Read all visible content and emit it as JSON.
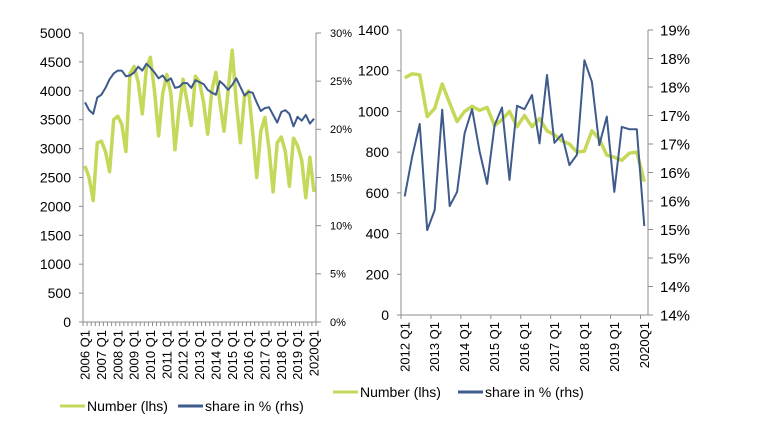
{
  "colors": {
    "number": "#c6d85a",
    "share": "#3e5b8c",
    "axis": "#8c8c8c"
  },
  "chart_data": [
    {
      "type": "line",
      "x_tick_labels": [
        "2006 Q1",
        "2007 Q1",
        "2008 Q1",
        "2009 Q1",
        "2010 Q1",
        "2011 Q1",
        "2012 Q1",
        "2013 Q1",
        "2014 Q1",
        "2015 Q1",
        "2016 Q1",
        "2017 Q1",
        "2018 Q1",
        "2019 Q1",
        "2020Q1"
      ],
      "x_range": [
        "2006 Q1",
        "2020 Q1"
      ],
      "y_left": {
        "range": [
          0,
          5000
        ],
        "ticks": [
          "0",
          "500",
          "1000",
          "1500",
          "2000",
          "2500",
          "3000",
          "3500",
          "4000",
          "4500",
          "5000"
        ]
      },
      "y_right": {
        "range": [
          0,
          30
        ],
        "unit": "%",
        "ticks": [
          "0%",
          "5%",
          "10%",
          "15%",
          "20%",
          "25%",
          "30%"
        ]
      },
      "legend_position": "bottom",
      "series": [
        {
          "name": "Number (lhs)",
          "axis": "left",
          "values": [
            2700,
            2500,
            2100,
            3100,
            3130,
            2950,
            2600,
            3500,
            3560,
            3420,
            2950,
            4300,
            4420,
            4150,
            3600,
            4400,
            4580,
            4000,
            3220,
            3950,
            4280,
            3950,
            2980,
            3700,
            4200,
            3800,
            3400,
            4250,
            4150,
            3800,
            3250,
            4000,
            4320,
            3800,
            3300,
            4000,
            4700,
            3800,
            3100,
            3900,
            4000,
            3300,
            2500,
            3300,
            3540,
            3000,
            2250,
            3100,
            3200,
            2950,
            2350,
            3180,
            3050,
            2800,
            2150,
            2850,
            2250
          ]
        },
        {
          "name": "share in % (rhs)",
          "axis": "right",
          "values": [
            22.8,
            22.0,
            21.6,
            23.3,
            23.6,
            24.3,
            25.2,
            25.8,
            26.1,
            26.1,
            25.5,
            25.6,
            25.9,
            26.5,
            26.1,
            26.8,
            26.4,
            25.9,
            25.3,
            25.6,
            25.0,
            25.3,
            24.3,
            24.4,
            24.8,
            24.8,
            24.3,
            25.1,
            24.9,
            24.7,
            24.1,
            23.8,
            23.6,
            25.0,
            24.6,
            24.1,
            24.6,
            25.3,
            24.4,
            23.5,
            23.9,
            23.8,
            22.8,
            21.9,
            22.2,
            22.3,
            21.5,
            20.7,
            21.8,
            22.0,
            21.6,
            20.3,
            21.3,
            20.9,
            21.5,
            20.6,
            21.1
          ]
        }
      ]
    },
    {
      "type": "line",
      "x_tick_labels": [
        "2012 Q1",
        "2013 Q1",
        "2014 Q1",
        "2015 Q1",
        "2016 Q1",
        "2017 Q1",
        "2018 Q1",
        "2019 Q1",
        "2020Q1"
      ],
      "x_range": [
        "2012 Q1",
        "2020 Q1"
      ],
      "y_left": {
        "range": [
          0,
          1400
        ],
        "ticks": [
          "0",
          "200",
          "400",
          "600",
          "800",
          "1000",
          "1200",
          "1400"
        ]
      },
      "y_right": {
        "range": [
          14,
          19
        ],
        "unit": "%",
        "ticks": [
          "14%",
          "14%",
          "15%",
          "15%",
          "16%",
          "16%",
          "17%",
          "17%",
          "18%",
          "18%",
          "19%"
        ]
      },
      "legend_position": "bottom",
      "series": [
        {
          "name": "Number (lhs)",
          "axis": "left",
          "values": [
            1165,
            1185,
            1180,
            975,
            1015,
            1135,
            1040,
            950,
            1000,
            1025,
            1005,
            1020,
            930,
            960,
            1000,
            925,
            980,
            925,
            965,
            905,
            885,
            855,
            840,
            800,
            805,
            905,
            865,
            785,
            775,
            760,
            795,
            800,
            655
          ]
        },
        {
          "name": "share in % (rhs)",
          "axis": "right",
          "values": [
            16.08,
            16.78,
            17.35,
            15.49,
            15.84,
            17.6,
            15.91,
            16.16,
            17.19,
            17.61,
            16.87,
            16.3,
            17.33,
            17.64,
            16.37,
            17.67,
            17.61,
            17.86,
            17.01,
            18.21,
            17.02,
            17.17,
            16.63,
            16.81,
            18.47,
            18.09,
            16.98,
            17.48,
            16.16,
            17.3,
            17.26,
            17.26,
            15.56
          ]
        }
      ]
    }
  ]
}
